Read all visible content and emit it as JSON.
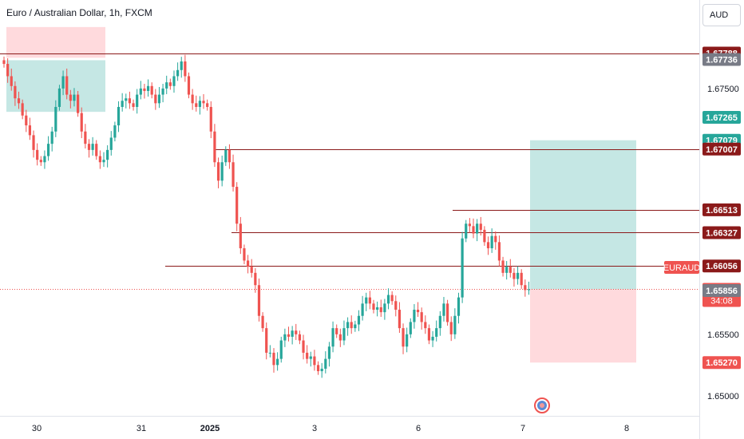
{
  "chart_title": "Euro / Australian Dollar, 1h, FXCM",
  "currency_button": "AUD",
  "symbol_tag": "EURAUD",
  "countdown": "34:08",
  "colors": {
    "up": "#26a69a",
    "down": "#ef5350",
    "level": "#8b1a1a",
    "target_zone": "#b2dfdb",
    "stop_zone": "#ffcdd2"
  },
  "chart_data": {
    "type": "candlestick",
    "x_ticks": [
      "30",
      "31",
      "2025",
      "3",
      "6",
      "7",
      "8"
    ],
    "y_ticks": [
      "1.67500",
      "1.65500",
      "1.65000"
    ],
    "ylim": [
      1.6483,
      1.6822
    ],
    "current_price": "1.65866",
    "levels": [
      "1.67788",
      "1.67007",
      "1.66513",
      "1.66327",
      "1.66056"
    ],
    "price_tags": [
      {
        "value": "1.67788",
        "kind": "level"
      },
      {
        "value": "1.67736",
        "kind": "grey"
      },
      {
        "value": "1.67265",
        "kind": "up"
      },
      {
        "value": "1.67079",
        "kind": "up"
      },
      {
        "value": "1.67007",
        "kind": "level"
      },
      {
        "value": "1.66513",
        "kind": "level"
      },
      {
        "value": "1.66327",
        "kind": "level"
      },
      {
        "value": "1.66056",
        "kind": "level"
      },
      {
        "value": "1.65866",
        "kind": "current"
      },
      {
        "value": "1.65856",
        "kind": "grey"
      },
      {
        "value": "1.65270",
        "kind": "down"
      }
    ],
    "zones": [
      {
        "name": "earlier-stop",
        "top": 1.68,
        "bottom": 1.6775
      },
      {
        "name": "earlier-target",
        "top": 1.6773,
        "bottom": 1.6731
      },
      {
        "name": "target",
        "top": 1.67079,
        "bottom": 1.65866
      },
      {
        "name": "stop",
        "top": 1.65866,
        "bottom": 1.6527
      }
    ],
    "closes": [
      1.677,
      1.676,
      1.6752,
      1.6742,
      1.6738,
      1.6728,
      1.672,
      1.6712,
      1.67,
      1.6692,
      1.669,
      1.6695,
      1.6705,
      1.6715,
      1.6735,
      1.675,
      1.676,
      1.6745,
      1.674,
      1.6745,
      1.673,
      1.6715,
      1.6705,
      1.67,
      1.6705,
      1.6695,
      1.669,
      1.6692,
      1.67,
      1.671,
      1.672,
      1.6735,
      1.674,
      1.6742,
      1.6738,
      1.6735,
      1.6745,
      1.675,
      1.6748,
      1.6752,
      1.6745,
      1.6738,
      1.6745,
      1.675,
      1.6755,
      1.6752,
      1.676,
      1.6765,
      1.6772,
      1.676,
      1.6745,
      1.6738,
      1.6735,
      1.674,
      1.6738,
      1.6735,
      1.6715,
      1.669,
      1.6675,
      1.669,
      1.67,
      1.669,
      1.667,
      1.664,
      1.662,
      1.661,
      1.6605,
      1.66,
      1.659,
      1.6565,
      1.6555,
      1.6535,
      1.6535,
      1.6525,
      1.653,
      1.6545,
      1.655,
      1.6548,
      1.6553,
      1.655,
      1.6545,
      1.6535,
      1.653,
      1.6532,
      1.6525,
      1.652,
      1.6522,
      1.653,
      1.654,
      1.6555,
      1.655,
      1.6545,
      1.6555,
      1.656,
      1.6555,
      1.6558,
      1.6565,
      1.6575,
      1.658,
      1.6575,
      1.657,
      1.6572,
      1.6568,
      1.6575,
      1.6582,
      1.6577,
      1.657,
      1.6555,
      1.654,
      1.655,
      1.656,
      1.657,
      1.6568,
      1.656,
      1.6555,
      1.6545,
      1.6548,
      1.6555,
      1.6565,
      1.6575,
      1.656,
      1.655,
      1.6565,
      1.658,
      1.6628,
      1.664,
      1.6638,
      1.6632,
      1.664,
      1.6635,
      1.6625,
      1.662,
      1.663,
      1.6625,
      1.661,
      1.66,
      1.6605,
      1.66,
      1.6595,
      1.66,
      1.659,
      1.6586,
      1.65866
    ]
  }
}
